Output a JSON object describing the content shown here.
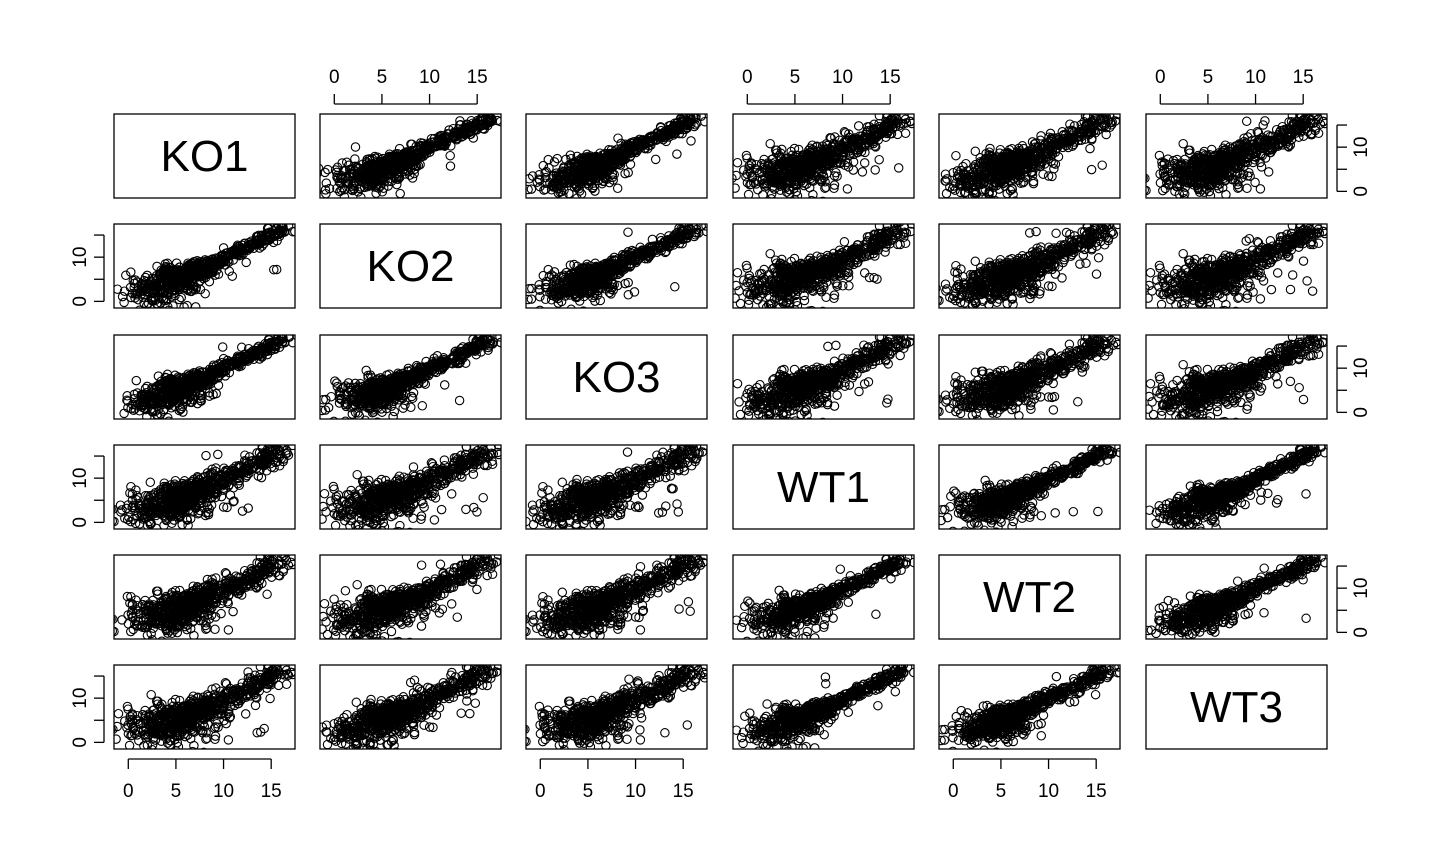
{
  "chart_data": {
    "type": "scatter",
    "subtype": "pairs-matrix",
    "variables": [
      "KO1",
      "KO2",
      "KO3",
      "WT1",
      "WT2",
      "WT3"
    ],
    "axis": {
      "range": [
        -1.5,
        17.5
      ],
      "ticks": [
        0,
        5,
        10,
        15
      ]
    },
    "y_ticks": [
      0,
      10
    ],
    "tick_labels_x": [
      "0",
      "5",
      "10",
      "15"
    ],
    "tick_labels_y": [
      "0",
      "10"
    ],
    "point_style": "open-circle",
    "trend": "points cluster along the diagonal; strongest correlation within KO group and within WT group"
  }
}
